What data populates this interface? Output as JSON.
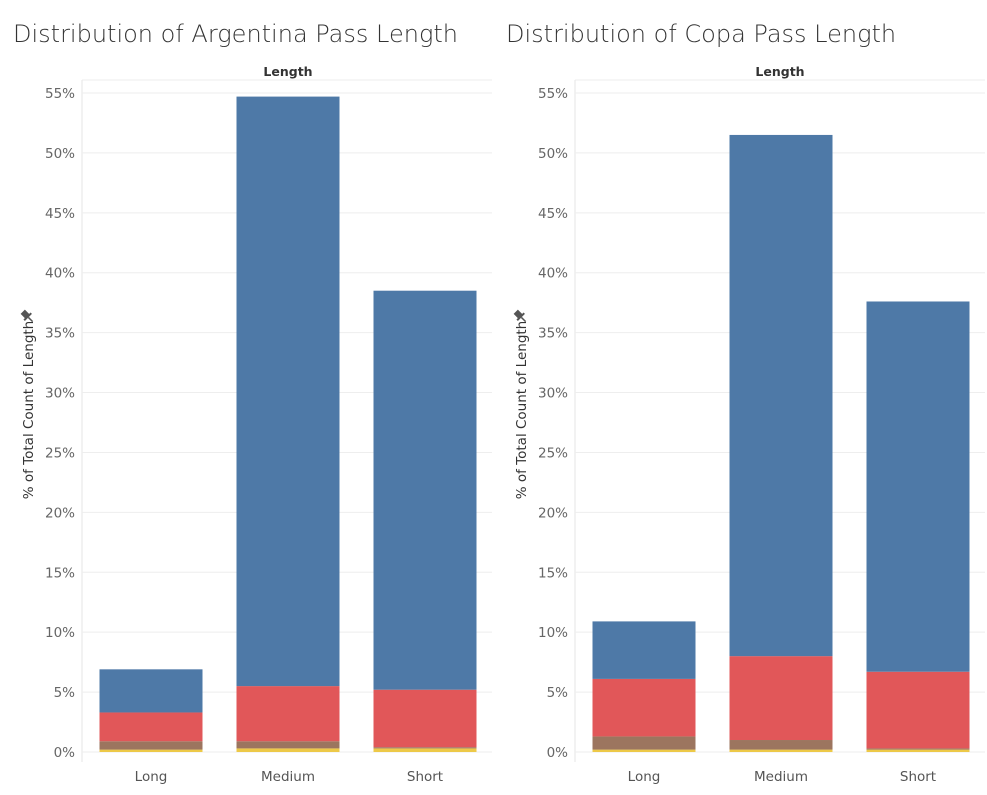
{
  "colors": {
    "blue": "#4e79a7",
    "red": "#e15759",
    "brown": "#9c755f",
    "yellow": "#edc948"
  },
  "icons": {
    "pin": "pin-icon"
  },
  "chart_data": [
    {
      "type": "bar",
      "title": "Distribution of Argentina Pass Length",
      "header": "Length",
      "ylabel": "% of Total Count of Length",
      "ylim": [
        -0.8,
        55.5
      ],
      "yticks": [
        "0%",
        "5%",
        "10%",
        "15%",
        "20%",
        "25%",
        "30%",
        "35%",
        "40%",
        "45%",
        "50%",
        "55%"
      ],
      "ytick_values": [
        0,
        5,
        10,
        15,
        20,
        25,
        30,
        35,
        40,
        45,
        50,
        55
      ],
      "categories": [
        "Long",
        "Medium",
        "Short"
      ],
      "stacked": true,
      "series": [
        {
          "color": "#edc948",
          "values": [
            0.2,
            0.3,
            0.3
          ]
        },
        {
          "color": "#9c755f",
          "values": [
            0.7,
            0.6,
            0.1
          ]
        },
        {
          "color": "#e15759",
          "values": [
            2.4,
            4.6,
            4.8
          ]
        },
        {
          "color": "#4e79a7",
          "values": [
            3.6,
            49.2,
            33.3
          ]
        }
      ]
    },
    {
      "type": "bar",
      "title": "Distribution of Copa Pass Length",
      "header": "Length",
      "ylabel": "% of Total Count of Length",
      "ylim": [
        -0.8,
        55.5
      ],
      "yticks": [
        "0%",
        "5%",
        "10%",
        "15%",
        "20%",
        "25%",
        "30%",
        "35%",
        "40%",
        "45%",
        "50%",
        "55%"
      ],
      "ytick_values": [
        0,
        5,
        10,
        15,
        20,
        25,
        30,
        35,
        40,
        45,
        50,
        55
      ],
      "categories": [
        "Long",
        "Medium",
        "Short"
      ],
      "stacked": true,
      "series": [
        {
          "color": "#edc948",
          "values": [
            0.2,
            0.2,
            0.2
          ]
        },
        {
          "color": "#9c755f",
          "values": [
            1.1,
            0.8,
            0.1
          ]
        },
        {
          "color": "#e15759",
          "values": [
            4.8,
            7.0,
            6.4
          ]
        },
        {
          "color": "#4e79a7",
          "values": [
            4.8,
            43.5,
            30.9
          ]
        }
      ]
    }
  ]
}
